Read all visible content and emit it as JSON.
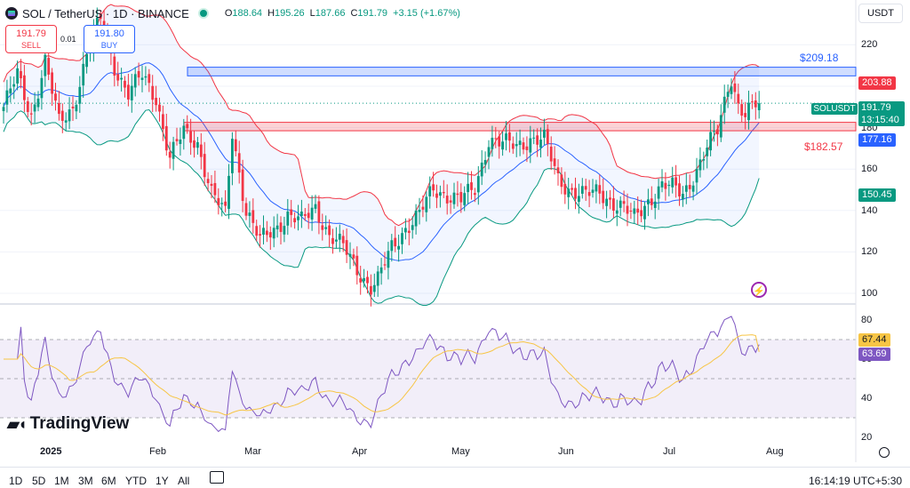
{
  "header": {
    "title": "SOL / TetherUS · 1D · BINANCE",
    "open_label": "O",
    "open": "188.64",
    "high_label": "H",
    "high": "195.26",
    "low_label": "L",
    "low": "187.66",
    "close_label": "C",
    "close": "191.79",
    "change": "+3.15 (+1.67%)"
  },
  "trade": {
    "sell_price": "191.79",
    "sell_label": "SELL",
    "spread": "0.01",
    "buy_price": "191.80",
    "buy_label": "BUY"
  },
  "currency_button": "USDT",
  "symbol_tag": "SOLUSDT",
  "current_price": "191.79",
  "countdown": "13:15:40",
  "levels": {
    "resistance_label": "$209.18",
    "support_label": "$182.57",
    "upper_band_badge": "203.88",
    "middle_band_badge": "177.16",
    "lower_band_badge": "150.45",
    "rsi_badge": "67.44",
    "rsi_ma_badge": "63.69"
  },
  "brand": "TradingView",
  "timeframes": [
    "1D",
    "5D",
    "1M",
    "3M",
    "6M",
    "YTD",
    "1Y",
    "All"
  ],
  "clock": "16:14:19 UTC+5:30",
  "colors": {
    "up": "#089981",
    "down": "#f23645",
    "band_upper": "#f23645",
    "band_mid": "#2962ff",
    "band_lower": "#089981",
    "rsi": "#7e57c2",
    "rsi_ma": "#f7c545",
    "resistance_zone": "#2962ff",
    "support_zone": "#f23645"
  },
  "icons": {
    "flash": "flash-icon",
    "calendar": "calendar-range-icon",
    "settings": "gear-icon"
  },
  "chart_data": [
    {
      "type": "candlestick",
      "title": "SOL / TetherUS · 1D · BINANCE",
      "ylim": [
        95,
        232
      ],
      "y_ticks": [
        100,
        120,
        140,
        160,
        180,
        200,
        220
      ],
      "x_ticks": [
        "2025",
        "Feb",
        "Mar",
        "Apr",
        "May",
        "Jun",
        "Jul",
        "Aug"
      ],
      "zones": [
        {
          "label": "$209.18",
          "from": 205,
          "to": 209.18
        },
        {
          "label": "$182.57",
          "from": 178.5,
          "to": 182.57
        }
      ],
      "close_anchors": [
        [
          0,
          190
        ],
        [
          4,
          205
        ],
        [
          8,
          186
        ],
        [
          12,
          212
        ],
        [
          16,
          182
        ],
        [
          20,
          190
        ],
        [
          24,
          215
        ],
        [
          28,
          232
        ],
        [
          32,
          210
        ],
        [
          36,
          196
        ],
        [
          40,
          205
        ],
        [
          44,
          195
        ],
        [
          48,
          165
        ],
        [
          52,
          178
        ],
        [
          56,
          173
        ],
        [
          60,
          148
        ],
        [
          64,
          138
        ],
        [
          66,
          178
        ],
        [
          70,
          140
        ],
        [
          74,
          125
        ],
        [
          78,
          131
        ],
        [
          82,
          138
        ],
        [
          86,
          134
        ],
        [
          90,
          142
        ],
        [
          94,
          128
        ],
        [
          98,
          122
        ],
        [
          102,
          112
        ],
        [
          106,
          103
        ],
        [
          108,
          106
        ],
        [
          112,
          122
        ],
        [
          116,
          132
        ],
        [
          120,
          138
        ],
        [
          124,
          150
        ],
        [
          128,
          148
        ],
        [
          132,
          145
        ],
        [
          136,
          150
        ],
        [
          140,
          175
        ],
        [
          144,
          172
        ],
        [
          148,
          171
        ],
        [
          152,
          175
        ],
        [
          156,
          174
        ],
        [
          160,
          155
        ],
        [
          164,
          150
        ],
        [
          168,
          147
        ],
        [
          172,
          149
        ],
        [
          176,
          144
        ],
        [
          178,
          142
        ],
        [
          182,
          136
        ],
        [
          186,
          145
        ],
        [
          190,
          152
        ],
        [
          194,
          150
        ],
        [
          196,
          148
        ],
        [
          200,
          160
        ],
        [
          203,
          170
        ],
        [
          206,
          178
        ],
        [
          209,
          200
        ],
        [
          210,
          205
        ],
        [
          212,
          191
        ],
        [
          214,
          186
        ],
        [
          216,
          189
        ],
        [
          218,
          191.79
        ]
      ]
    },
    {
      "type": "line",
      "title": "RSI",
      "ylim": [
        20,
        85
      ],
      "y_ticks": [
        20,
        40,
        60,
        80
      ],
      "band": [
        30,
        70
      ],
      "series": [
        {
          "name": "RSI",
          "value": 67.44
        },
        {
          "name": "RSI MA",
          "value": 63.69
        }
      ]
    }
  ]
}
